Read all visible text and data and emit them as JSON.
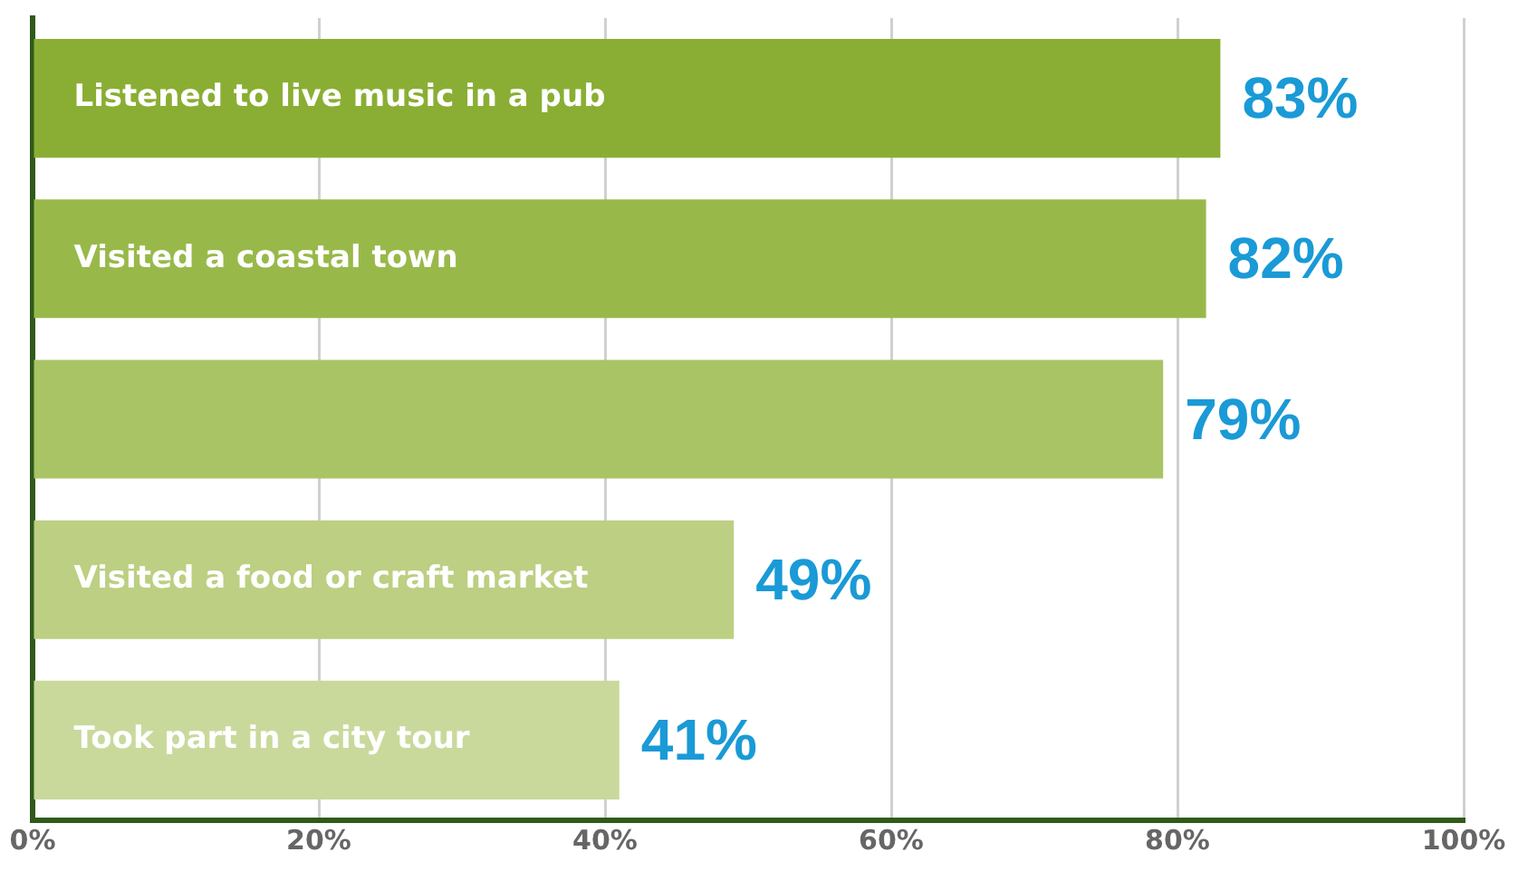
{
  "chart_data": {
    "type": "bar",
    "orientation": "horizontal",
    "categories": [
      "Listened to live music in a pub",
      "Visited a coastal town",
      null,
      "Visited a food or craft market",
      "Took part in a city tour"
    ],
    "values": [
      83,
      82,
      79,
      49,
      41
    ],
    "colors": [
      "#8aae34",
      "#98b94a",
      "#a9c465",
      "#bccf82",
      "#c9d99c"
    ],
    "value_labels": [
      "83%",
      "82%",
      "79%",
      "49%",
      "41%"
    ],
    "xlim": [
      0,
      100
    ],
    "xticks": [
      {
        "value": 0,
        "label": "0%"
      },
      {
        "value": 20,
        "label": "20%"
      },
      {
        "value": 40,
        "label": "40%"
      },
      {
        "value": 60,
        "label": "60%"
      },
      {
        "value": 80,
        "label": "80%"
      },
      {
        "value": 100,
        "label": "100%"
      }
    ],
    "grid": "x",
    "legend": false
  }
}
